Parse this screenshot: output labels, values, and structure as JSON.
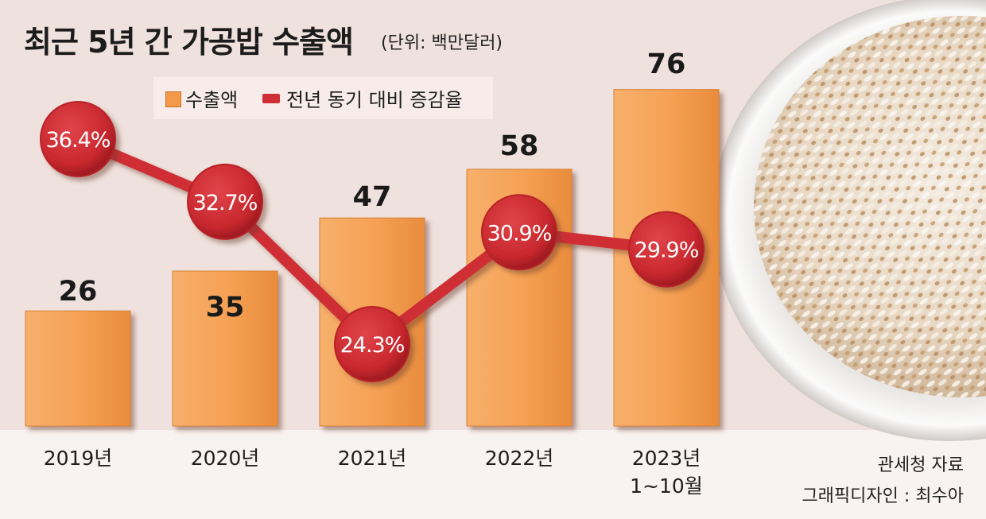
{
  "title": "최근 5년 간 가공밥 수출액",
  "unit": "(단위: 백만달러)",
  "legend": {
    "bar": "수출액",
    "line": "전년 동기 대비 증감율"
  },
  "source": "관세청 자료",
  "credit": "그래픽디자인 : 최수아",
  "colors": {
    "bar": "#f39a48",
    "line": "#cf2f34",
    "background": "#efe1dd"
  },
  "chart_data": {
    "type": "bar",
    "categories": [
      "2019년",
      "2020년",
      "2021년",
      "2022년",
      "2023년\n1~10월"
    ],
    "series": [
      {
        "name": "수출액",
        "type": "bar",
        "values": [
          26,
          35,
          47,
          58,
          76
        ],
        "labels": [
          "26",
          "35",
          "47",
          "58",
          "76"
        ]
      },
      {
        "name": "전년 동기 대비 증감율",
        "type": "line",
        "values": [
          36.4,
          32.7,
          24.3,
          30.9,
          29.9
        ],
        "labels": [
          "36.4%",
          "32.7%",
          "24.3%",
          "30.9%",
          "29.9%"
        ]
      }
    ]
  }
}
